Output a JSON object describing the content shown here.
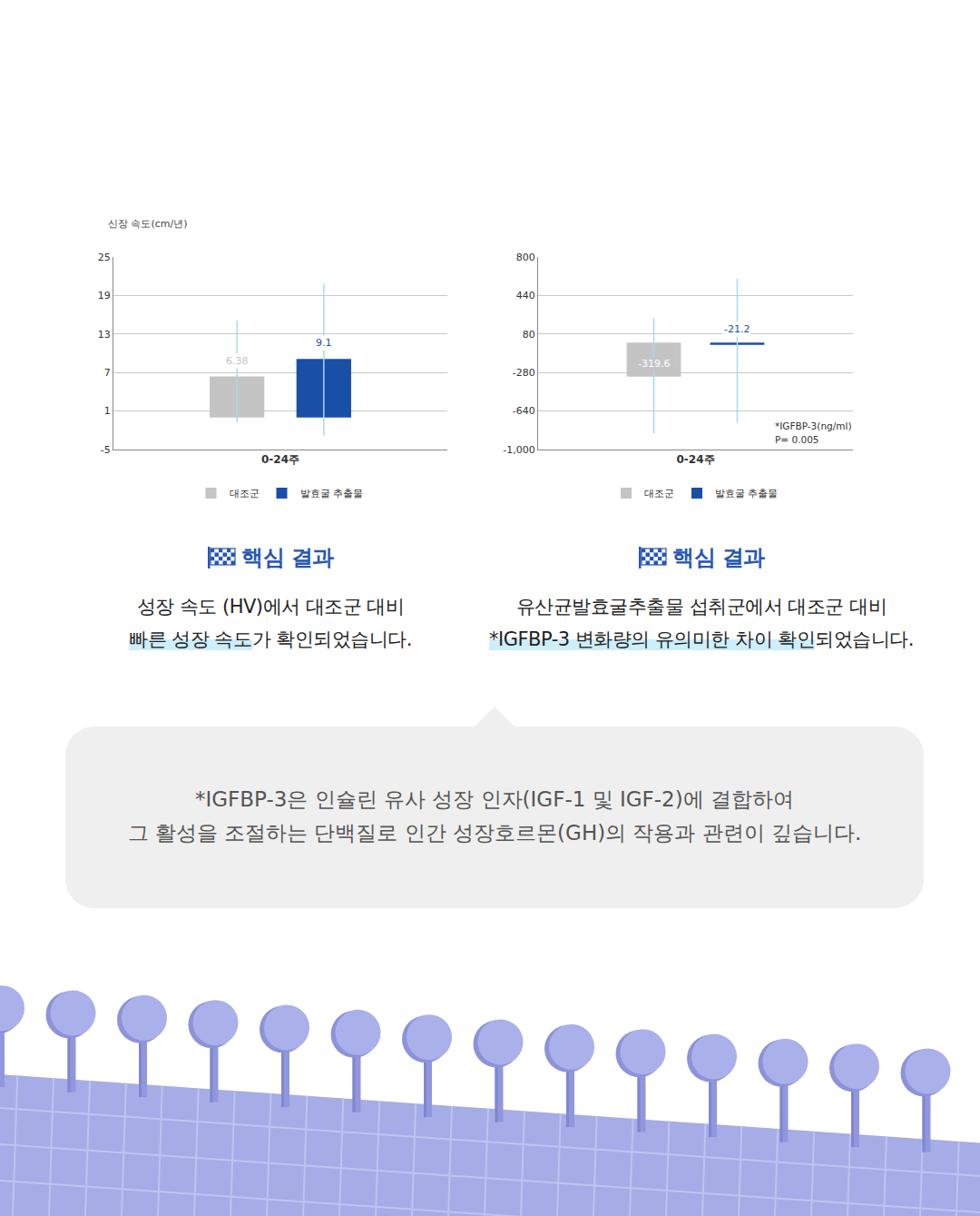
{
  "chart_data": [
    {
      "type": "bar",
      "y_label": "신장 속도(cm/년)",
      "categories": [
        "0-24주"
      ],
      "series": [
        {
          "name": "대조군",
          "color": "#c4c4c4",
          "values": [
            6.38
          ],
          "error_plus": [
            8.7
          ],
          "error_minus": [
            7.2
          ]
        },
        {
          "name": "발효굴 추출물",
          "color": "#1a4fa8",
          "values": [
            9.1
          ],
          "error_plus": [
            11.7
          ],
          "error_minus": [
            11.9
          ]
        }
      ],
      "ylim": [
        -5,
        25
      ],
      "yticks": [
        -5,
        1,
        7,
        13,
        19,
        25
      ],
      "grid": true,
      "legend": "bottom",
      "data_labels": true
    },
    {
      "type": "bar",
      "categories": [
        "0-24주"
      ],
      "series": [
        {
          "name": "대조군",
          "color": "#c4c4c4",
          "values": [
            -319.6
          ],
          "error_plus": [
            550
          ],
          "error_minus": [
            530
          ]
        },
        {
          "name": "발효굴 추출물",
          "color": "#1a4fa8",
          "values": [
            -21.2
          ],
          "error_plus": [
            620
          ],
          "error_minus": [
            730
          ]
        }
      ],
      "ylim": [
        -1000,
        800
      ],
      "yticks": [
        {
          "value": -1000,
          "label": "-1,000"
        },
        -640,
        -280,
        80,
        440,
        800
      ],
      "grid": true,
      "legend": "bottom",
      "data_labels": true,
      "annotations": [
        "*IGFBP-3(ng/ml)",
        "P= 0.005"
      ]
    }
  ],
  "results": [
    {
      "heading": "핵심 결과",
      "lines": [
        [
          {
            "text": "성장 속도 (HV)에서 대조군 대비"
          }
        ],
        [
          {
            "text": "빠른 성장 속도",
            "highlight": true
          },
          {
            "text": "가 확인되었습니다."
          }
        ]
      ]
    },
    {
      "heading": "핵심 결과",
      "lines": [
        [
          {
            "text": "유산균발효굴추출물 섭취군에서 대조군 대비"
          }
        ],
        [
          {
            "text": "*IGFBP-3 변화량의 유의미한 차이 확인",
            "highlight": true
          },
          {
            "text": "되었습니다."
          }
        ]
      ]
    }
  ],
  "note": {
    "lines": [
      "*IGFBP-3은 인슐린 유사 성장 인자(IGF-1 및 IGF-2)에 결합하여",
      "그 활성을 조절하는 단백질로 인간 성장호르몬(GH)의 작용과 관련이 깊습니다."
    ]
  }
}
